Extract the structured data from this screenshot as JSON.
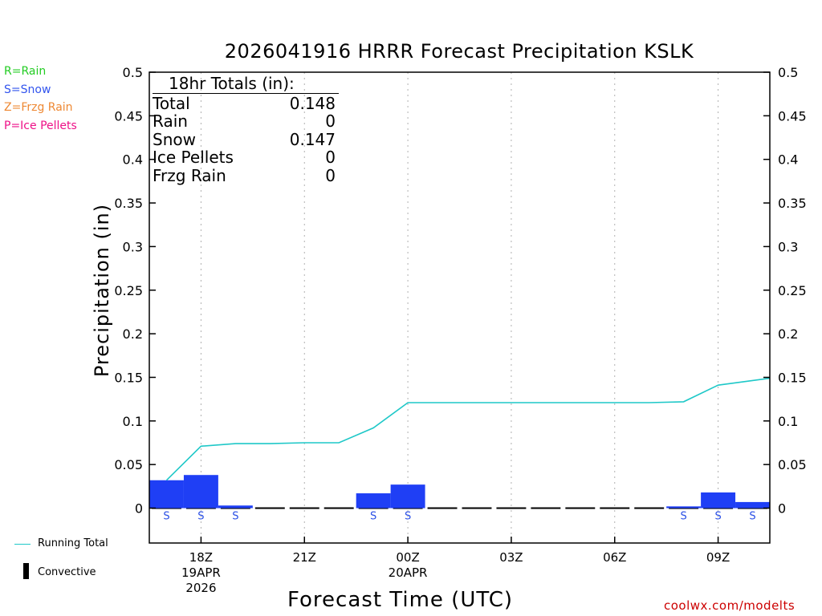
{
  "chart_data": {
    "type": "bar",
    "title": "2026041916 HRRR Forecast Precipitation KSLK",
    "xlabel": "Forecast Time (UTC)",
    "ylabel": "Precipitation (in)",
    "ylim": [
      -0.04,
      0.5
    ],
    "yticks": [
      "0",
      "0.05",
      "0.1",
      "0.15",
      "0.2",
      "0.25",
      "0.3",
      "0.35",
      "0.4",
      "0.45",
      "0.5"
    ],
    "xlim_hours": [
      16.5,
      34.5
    ],
    "xticks": [
      {
        "hour": 18,
        "label": "18Z",
        "sub1": "19APR",
        "sub2": "2026"
      },
      {
        "hour": 21,
        "label": "21Z",
        "sub1": "",
        "sub2": ""
      },
      {
        "hour": 24,
        "label": "00Z",
        "sub1": "20APR",
        "sub2": ""
      },
      {
        "hour": 27,
        "label": "03Z",
        "sub1": "",
        "sub2": ""
      },
      {
        "hour": 30,
        "label": "06Z",
        "sub1": "",
        "sub2": ""
      },
      {
        "hour": 33,
        "label": "09Z",
        "sub1": "",
        "sub2": ""
      }
    ],
    "hourly": {
      "hours": [
        17,
        18,
        19,
        20,
        21,
        22,
        23,
        24,
        25,
        26,
        27,
        28,
        29,
        30,
        31,
        32,
        33,
        34
      ],
      "precip": [
        0.032,
        0.038,
        0.003,
        0,
        0,
        0,
        0.017,
        0.027,
        0,
        0,
        0,
        0,
        0,
        0,
        0,
        0.002,
        0.018,
        0.007
      ],
      "ptype": [
        "S",
        "S",
        "S",
        "",
        "",
        "",
        "S",
        "S",
        "",
        "",
        "",
        "",
        "",
        "",
        "",
        "S",
        "S",
        "S"
      ],
      "convective": [
        0,
        0,
        0,
        0,
        0,
        0,
        0,
        0,
        0,
        0,
        0,
        0,
        0,
        0,
        0,
        0,
        0,
        0
      ]
    },
    "running_total": {
      "name": "Running Total",
      "hours": [
        17,
        18,
        19,
        20,
        21,
        22,
        23,
        24,
        25,
        26,
        27,
        28,
        29,
        30,
        31,
        32,
        33,
        34.5
      ],
      "values": [
        0.032,
        0.071,
        0.074,
        0.074,
        0.075,
        0.075,
        0.092,
        0.121,
        0.121,
        0.121,
        0.121,
        0.121,
        0.121,
        0.121,
        0.121,
        0.122,
        0.141,
        0.149
      ]
    },
    "colors": {
      "snow_bar": "#1f3ff5",
      "running_total": "#1fc8c8",
      "convective": "#000000",
      "ptype_snow": "#2a4fe6"
    }
  },
  "legend_keys": [
    {
      "text": "R=Rain",
      "color": "#22cc22"
    },
    {
      "text": "S=Snow",
      "color": "#3355ee"
    },
    {
      "text": "Z=Frzg Rain",
      "color": "#ee8833"
    },
    {
      "text": "P=Ice Pellets",
      "color": "#ee1188"
    }
  ],
  "totals": {
    "header": "18hr Totals (in):",
    "rows": [
      {
        "label": "Total",
        "value": "0.148"
      },
      {
        "label": "Rain",
        "value": "0"
      },
      {
        "label": "Snow",
        "value": "0.147"
      },
      {
        "label": "Ice Pellets",
        "value": "0"
      },
      {
        "label": "Frzg Rain",
        "value": "0"
      }
    ]
  },
  "bottom_legend": {
    "running_total": "Running Total",
    "convective": "Convective"
  },
  "credit": "coolwx.com/modelts"
}
